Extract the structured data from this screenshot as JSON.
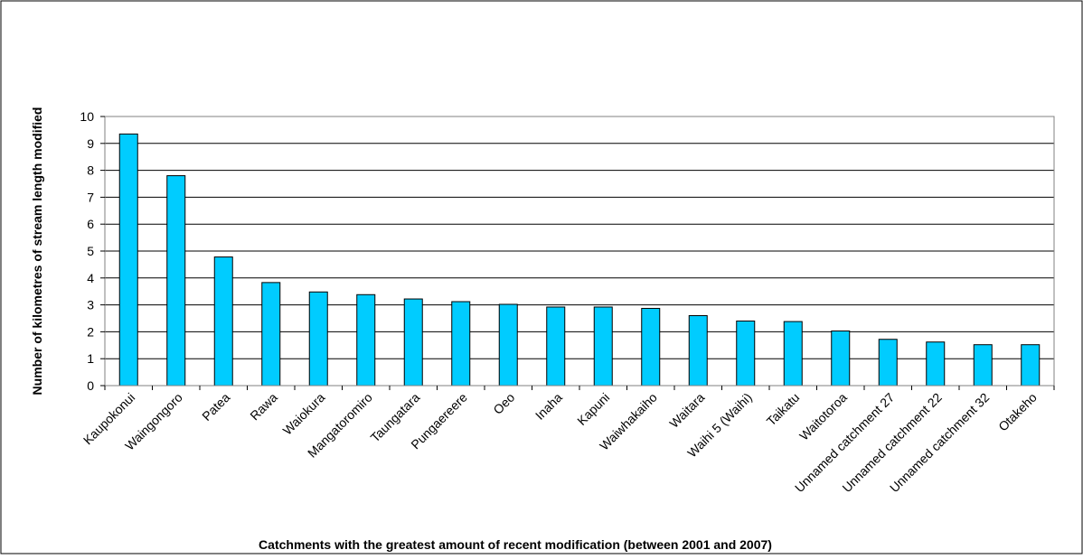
{
  "chart_data": {
    "type": "bar",
    "title": "",
    "xlabel": "Catchments with the greatest amount of recent modification (between 2001 and 2007)",
    "ylabel": "Number of kilometres of stream length modified",
    "ylim": [
      0,
      10
    ],
    "yticks": [
      "0",
      "1",
      "2",
      "3",
      "4",
      "5",
      "6",
      "7",
      "8",
      "9",
      "10"
    ],
    "grid": true,
    "legend": "none",
    "bar_color": "#00CCFF",
    "categories": [
      "Kaupokonui",
      "Waingongoro",
      "Patea",
      "Rawa",
      "Waiokura",
      "Mangatoromiro",
      "Taungatara",
      "Pungaereere",
      "Oeo",
      "Inaha",
      "Kapuni",
      "Waiwhakaiho",
      "Waitara",
      "Waihi 5 (Waihi)",
      "Taikatu",
      "Waitotoroa",
      "Unnamed catchment 27",
      "Unnamed catchment 22",
      "Unnamed catchment 32",
      "Otakeho"
    ],
    "values": [
      9.35,
      7.8,
      4.78,
      3.83,
      3.48,
      3.38,
      3.22,
      3.12,
      3.02,
      2.92,
      2.92,
      2.87,
      2.6,
      2.4,
      2.38,
      2.03,
      1.72,
      1.62,
      1.52,
      1.52
    ]
  }
}
